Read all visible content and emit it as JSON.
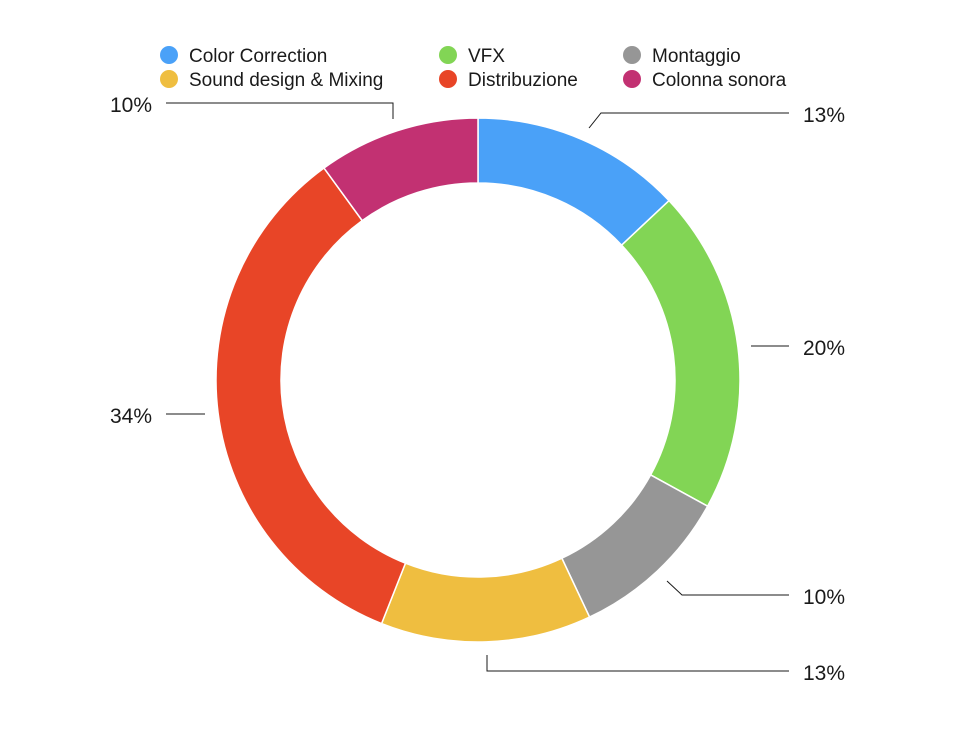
{
  "chart_data": {
    "type": "pie",
    "style": "donut",
    "title": "",
    "categories": [
      "Color Correction",
      "VFX",
      "Montaggio",
      "Sound design & Mixing",
      "Distribuzione",
      "Colonna sonora"
    ],
    "values": [
      13,
      20,
      10,
      13,
      34,
      10
    ],
    "value_labels": [
      "13%",
      "20%",
      "10%",
      "13%",
      "34%",
      "10%"
    ],
    "colors": [
      "#4aa1f8",
      "#82d555",
      "#969696",
      "#efbe40",
      "#e84527",
      "#c23172"
    ],
    "legend_placement": "top",
    "legend_order": [
      "Color Correction",
      "VFX",
      "Montaggio",
      "Sound design & Mixing",
      "Distribuzione",
      "Colonna sonora"
    ]
  }
}
